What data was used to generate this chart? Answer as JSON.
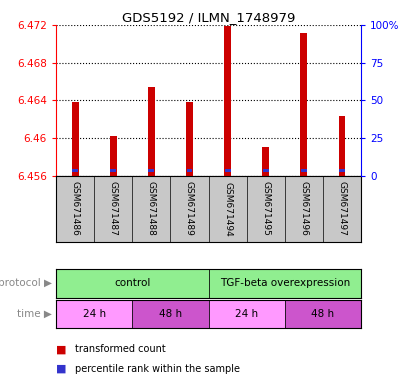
{
  "title": "GDS5192 / ILMN_1748979",
  "samples": [
    "GSM671486",
    "GSM671487",
    "GSM671488",
    "GSM671489",
    "GSM671494",
    "GSM671495",
    "GSM671496",
    "GSM671497"
  ],
  "red_values": [
    6.4638,
    6.4602,
    6.4654,
    6.4638,
    6.4719,
    6.4591,
    6.4712,
    6.4624
  ],
  "blue_pct": [
    3,
    3,
    3,
    3,
    4,
    2,
    4,
    2
  ],
  "ymin": 6.456,
  "ymax": 6.472,
  "yticks": [
    6.456,
    6.46,
    6.464,
    6.468,
    6.472
  ],
  "right_yticks": [
    0,
    25,
    50,
    75,
    100
  ],
  "right_yticklabels": [
    "0",
    "25",
    "50",
    "75",
    "100%"
  ],
  "bar_width": 0.18,
  "red_color": "#CC0000",
  "blue_color": "#3333CC",
  "background_color": "#ffffff",
  "sample_bg_color": "#C8C8C8",
  "protocol_light_green": "#AAFFAA",
  "protocol_dark_green": "#44CC44",
  "time_light_pink": "#FF88FF",
  "time_dark_pink": "#CC44CC",
  "proto_groups": [
    {
      "label": "control",
      "xstart": 0,
      "xend": 4
    },
    {
      "label": "TGF-beta overexpression",
      "xstart": 4,
      "xend": 8
    }
  ],
  "time_groups": [
    {
      "label": "24 h",
      "xstart": 0,
      "xend": 2,
      "light": true
    },
    {
      "label": "48 h",
      "xstart": 2,
      "xend": 4,
      "light": false
    },
    {
      "label": "24 h",
      "xstart": 4,
      "xend": 6,
      "light": true
    },
    {
      "label": "48 h",
      "xstart": 6,
      "xend": 8,
      "light": false
    }
  ]
}
